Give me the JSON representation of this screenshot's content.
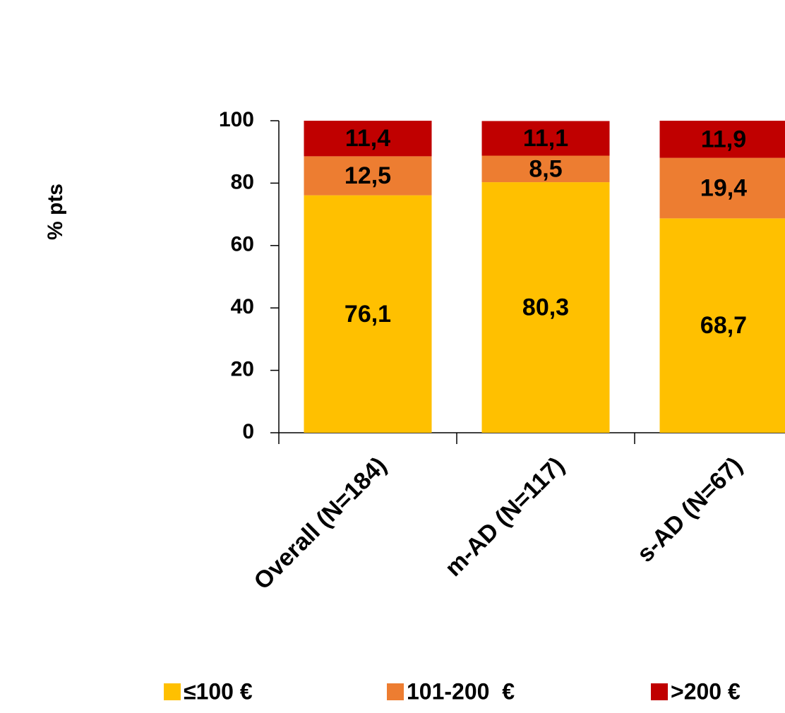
{
  "chart_data": {
    "type": "stacked-bar",
    "y_label": "% pts",
    "categories": [
      "Overall (N=184)",
      "m-AD (N=117)",
      "s-AD (N=67)"
    ],
    "series": [
      {
        "name": "≤100 €",
        "color": "#ffc000",
        "values": [
          76.1,
          80.3,
          68.7
        ],
        "value_labels": [
          "76,1",
          "80,3",
          "68,7"
        ]
      },
      {
        "name": "101-200  €",
        "color": "#ed7d31",
        "values": [
          12.5,
          8.5,
          19.4
        ],
        "value_labels": [
          "12,5",
          "8,5",
          "19,4"
        ]
      },
      {
        "name": ">200 €",
        "color": "#c00000",
        "values": [
          11.4,
          11.1,
          11.9
        ],
        "value_labels": [
          "11,4",
          "11,1",
          "11,9"
        ]
      }
    ],
    "ylim": [
      0,
      100
    ],
    "yticks": [
      0,
      20,
      40,
      60,
      80,
      100
    ],
    "legend": "bottom"
  }
}
